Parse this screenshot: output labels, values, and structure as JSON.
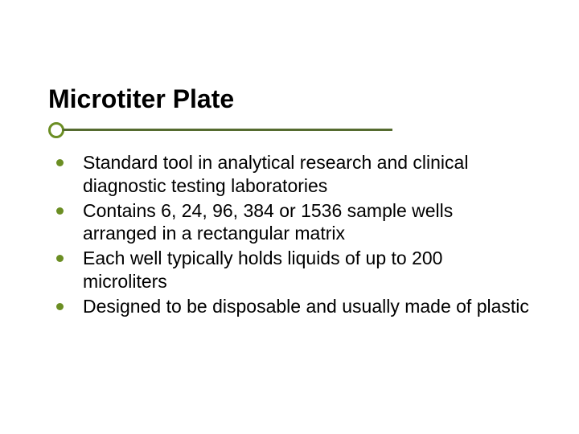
{
  "slide": {
    "title": "Microtiter Plate",
    "title_fontsize": 32,
    "title_color": "#000000",
    "underline": {
      "line_color": "#556b2f",
      "line_width": 410,
      "line_height": 3,
      "circle_border_color": "#6b8e23",
      "circle_diameter": 20
    },
    "bullets": [
      {
        "text": "Standard tool in analytical research and clinical diagnostic testing laboratories"
      },
      {
        "text": "Contains 6, 24, 96, 384 or 1536 sample wells arranged in a rectangular matrix"
      },
      {
        "text": "Each well typically holds liquids of up to 200 microliters"
      },
      {
        "text": "Designed to be disposable and usually  made of plastic"
      }
    ],
    "bullet_dot_color": "#6b8e23",
    "bullet_fontsize": 23,
    "bullet_text_color": "#000000",
    "background_color": "#ffffff"
  }
}
